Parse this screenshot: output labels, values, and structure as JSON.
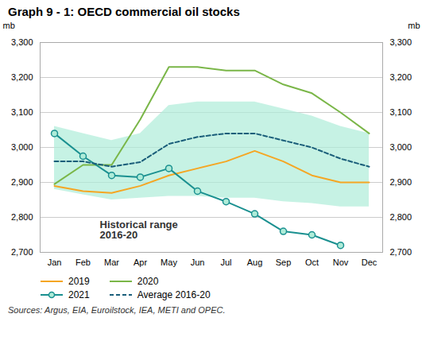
{
  "chart_data": {
    "type": "line",
    "title": "Graph 9 - 1: OECD commercial oil stocks",
    "ylabel": "mb",
    "y2label": "mb",
    "source": "Sources: Argus, EIA, Euroilstock, IEA, METI and OPEC.",
    "annotations": [
      "Historical range",
      "2016-20"
    ],
    "categories": [
      "Jan",
      "Feb",
      "Mar",
      "Apr",
      "May",
      "Jun",
      "Jul",
      "Aug",
      "Sep",
      "Oct",
      "Nov",
      "Dec"
    ],
    "band": {
      "upper": [
        3060,
        3040,
        3020,
        3040,
        3120,
        3130,
        3130,
        3130,
        3110,
        3090,
        3060,
        3040
      ],
      "lower": [
        2880,
        2865,
        2850,
        2855,
        2860,
        2860,
        2855,
        2855,
        2845,
        2840,
        2830,
        2830
      ],
      "color": "#aeecd8"
    },
    "series": [
      {
        "name": "2019",
        "color": "#f5a623",
        "values": [
          2890,
          2875,
          2870,
          2890,
          2920,
          2940,
          2960,
          2990,
          2960,
          2920,
          2900,
          2900
        ]
      },
      {
        "name": "2020",
        "color": "#7ab648",
        "values": [
          2895,
          2950,
          2950,
          3080,
          3230,
          3230,
          3220,
          3220,
          3180,
          3155,
          3100,
          3040
        ]
      },
      {
        "name": "2021",
        "color": "#1a9090",
        "marker": "circle",
        "values": [
          3040,
          2975,
          2920,
          2915,
          2940,
          2875,
          2845,
          2810,
          2760,
          2750,
          2720,
          null
        ]
      },
      {
        "name": "Average 2016-20",
        "color": "#1a5e7a",
        "line_style": "dashed",
        "values": [
          2960,
          2960,
          2945,
          2958,
          3010,
          3030,
          3040,
          3040,
          3020,
          3000,
          2968,
          2945
        ]
      }
    ],
    "ylim": [
      2700,
      3300
    ],
    "yticks": [
      {
        "value": 2700,
        "label": "2,700"
      },
      {
        "value": 2800,
        "label": "2,800"
      },
      {
        "value": 2900,
        "label": "2,900"
      },
      {
        "value": 3000,
        "label": "3,000"
      },
      {
        "value": 3100,
        "label": "3,100"
      },
      {
        "value": 3200,
        "label": "3,200"
      },
      {
        "value": 3300,
        "label": "3,300"
      }
    ],
    "y2lim": [
      2700,
      3300
    ],
    "y2ticks": [
      {
        "value": 2700,
        "label": "2,700"
      },
      {
        "value": 2800,
        "label": "2,800"
      },
      {
        "value": 2900,
        "label": "2,900"
      },
      {
        "value": 3000,
        "label": "3,000"
      },
      {
        "value": 3100,
        "label": "3,100"
      },
      {
        "value": 3200,
        "label": "3,200"
      },
      {
        "value": 3300,
        "label": "3,300"
      }
    ],
    "grid": true,
    "legend": "bottom"
  }
}
